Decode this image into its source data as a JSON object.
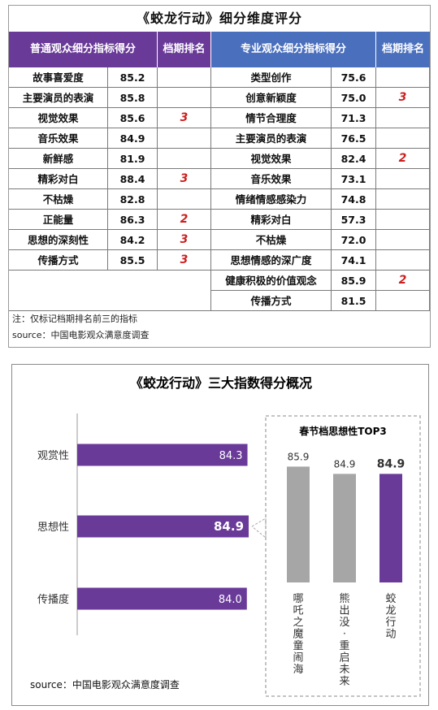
{
  "table": {
    "title": "《蛟龙行动》细分维度评分",
    "left_header": "普通观众细分指标得分",
    "left_rank_header": "档期排名",
    "right_header": "专业观众细分指标得分",
    "right_rank_header": "档期排名",
    "left_rows": [
      {
        "label": "故事喜爱度",
        "score": "85.2",
        "rank": ""
      },
      {
        "label": "主要演员的表演",
        "score": "85.8",
        "rank": ""
      },
      {
        "label": "视觉效果",
        "score": "85.6",
        "rank": "3"
      },
      {
        "label": "音乐效果",
        "score": "84.9",
        "rank": ""
      },
      {
        "label": "新鲜感",
        "score": "81.9",
        "rank": ""
      },
      {
        "label": "精彩对白",
        "score": "88.4",
        "rank": "3"
      },
      {
        "label": "不枯燥",
        "score": "82.8",
        "rank": ""
      },
      {
        "label": "正能量",
        "score": "86.3",
        "rank": "2"
      },
      {
        "label": "思想的深刻性",
        "score": "84.2",
        "rank": "3"
      },
      {
        "label": "传播方式",
        "score": "85.5",
        "rank": "3"
      }
    ],
    "right_rows": [
      {
        "label": "类型创作",
        "score": "75.6",
        "rank": ""
      },
      {
        "label": "创意新颖度",
        "score": "75.0",
        "rank": "3"
      },
      {
        "label": "情节合理度",
        "score": "71.3",
        "rank": ""
      },
      {
        "label": "主要演员的表演",
        "score": "76.5",
        "rank": ""
      },
      {
        "label": "视觉效果",
        "score": "82.4",
        "rank": "2"
      },
      {
        "label": "音乐效果",
        "score": "73.1",
        "rank": ""
      },
      {
        "label": "情绪情感感染力",
        "score": "74.8",
        "rank": ""
      },
      {
        "label": "精彩对白",
        "score": "57.3",
        "rank": ""
      },
      {
        "label": "不枯燥",
        "score": "72.0",
        "rank": ""
      },
      {
        "label": "思想情感的深广度",
        "score": "74.1",
        "rank": ""
      },
      {
        "label": "健康积极的价值观念",
        "score": "85.9",
        "rank": "2"
      },
      {
        "label": "传播方式",
        "score": "81.5",
        "rank": ""
      }
    ],
    "note": "注：仅标记档期排名前三的指标",
    "source": "source：中国电影观众满意度调查"
  },
  "chart_data": [
    {
      "type": "bar",
      "orientation": "horizontal",
      "title": "《蛟龙行动》三大指数得分概况",
      "categories": [
        "观赏性",
        "思想性",
        "传播度"
      ],
      "values": [
        84.3,
        84.9,
        84.0
      ],
      "value_labels": [
        "84.3",
        "84.9",
        "84.0"
      ],
      "highlight_index": 1,
      "color": "#6a3a99"
    },
    {
      "type": "bar",
      "orientation": "vertical",
      "title": "春节档思想性TOP3",
      "categories": [
        "哪吒之魔童闹海",
        "熊出没·重启未来",
        "蛟龙行动"
      ],
      "values": [
        85.9,
        84.9,
        84.9
      ],
      "value_labels": [
        "85.9",
        "84.9",
        "84.9"
      ],
      "colors": [
        "#a6a6a6",
        "#a6a6a6",
        "#6a3a99"
      ],
      "highlight_index": 2
    }
  ],
  "chart_source": "source：中国电影观众满意度调查"
}
